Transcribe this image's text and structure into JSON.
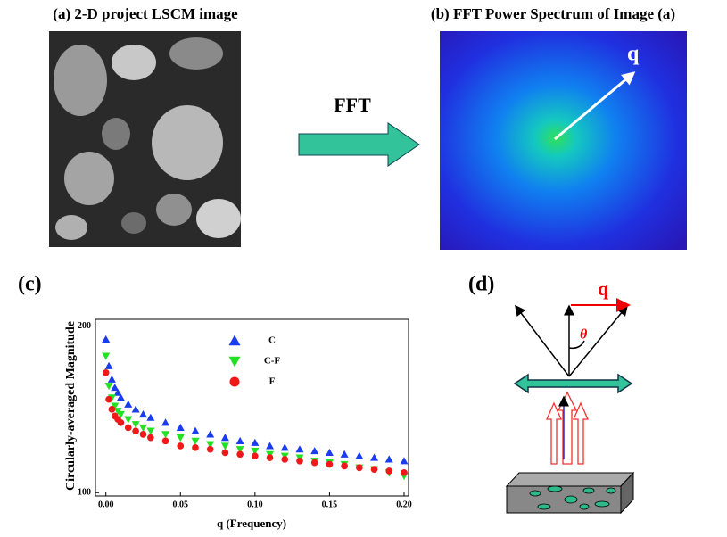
{
  "panel_a": {
    "label": "(a) 2-D project LSCM image"
  },
  "panel_b": {
    "label": "(b) FFT Power Spectrum of Image (a)",
    "vector": "q"
  },
  "arrow_label": "FFT",
  "panel_c": {
    "label": "(c)"
  },
  "panel_d": {
    "label": "(d)",
    "vector": "q",
    "angle": "θ"
  },
  "chart_data": {
    "type": "scatter",
    "xlabel": "q (Frequency)",
    "ylabel": "Circularly-averaged Magnitude",
    "x": [
      0,
      0.002,
      0.004,
      0.006,
      0.008,
      0.01,
      0.015,
      0.02,
      0.025,
      0.03,
      0.04,
      0.05,
      0.06,
      0.07,
      0.08,
      0.09,
      0.1,
      0.11,
      0.12,
      0.13,
      0.14,
      0.15,
      0.16,
      0.17,
      0.18,
      0.19,
      0.2
    ],
    "series": [
      {
        "name": "C",
        "color": "#1a3cf0",
        "marker": "triangle-up",
        "values": [
          192,
          176,
          168,
          163,
          160,
          157,
          153,
          150,
          147,
          145,
          142,
          139,
          137,
          135,
          133,
          131,
          130,
          128,
          127,
          126,
          125,
          124,
          123,
          122,
          121,
          120,
          119
        ]
      },
      {
        "name": "C-F",
        "color": "#22e022",
        "marker": "triangle-down",
        "values": [
          182,
          164,
          157,
          152,
          149,
          147,
          144,
          141,
          139,
          137,
          135,
          133,
          131,
          129,
          128,
          126,
          125,
          123,
          122,
          121,
          119,
          118,
          117,
          115,
          114,
          112,
          110
        ]
      },
      {
        "name": "F",
        "color": "#f01818",
        "marker": "circle",
        "values": [
          172,
          156,
          150,
          146,
          144,
          142,
          139,
          137,
          135,
          133,
          131,
          128,
          127,
          126,
          124,
          123,
          122,
          121,
          120,
          119,
          118,
          117,
          116,
          115,
          114,
          113,
          112
        ]
      }
    ],
    "xlim": [
      -0.007,
      0.203
    ],
    "ylim": [
      98,
      204
    ],
    "xticks": [
      {
        "value": 0,
        "label": "0.00"
      },
      {
        "value": 0.05,
        "label": "0.05"
      },
      {
        "value": 0.1,
        "label": "0.10"
      },
      {
        "value": 0.15,
        "label": "0.15"
      },
      {
        "value": 0.2,
        "label": "0.20"
      }
    ],
    "yticks": [
      100,
      200
    ]
  }
}
